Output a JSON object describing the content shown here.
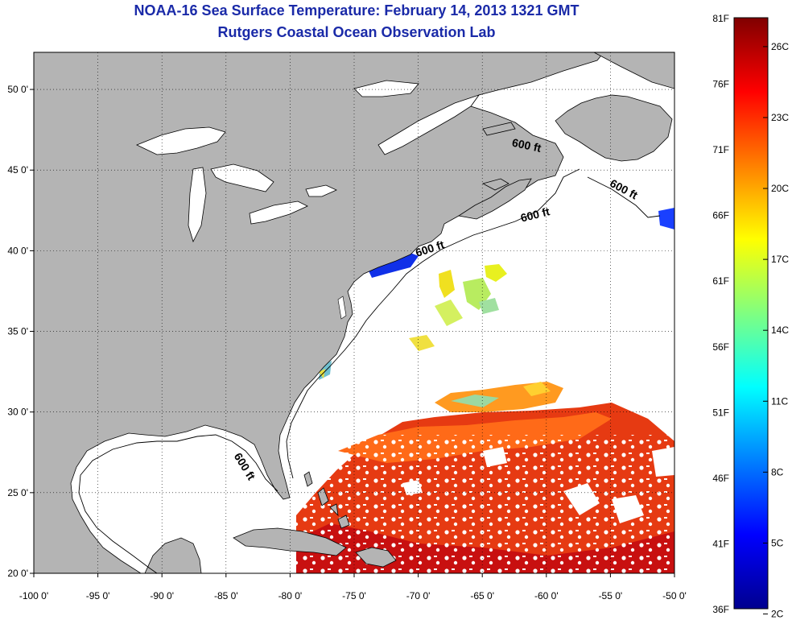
{
  "title": "NOAA-16 Sea Surface Temperature:  February 14, 2013 1321 GMT",
  "subtitle": "Rutgers Coastal Ocean Observation Lab",
  "map": {
    "lon_range": [
      -100,
      -50
    ],
    "lat_range": [
      20,
      52.3
    ],
    "x_ticks": [
      {
        "lon": -100,
        "label": "-100 0'"
      },
      {
        "lon": -95,
        "label": "-95 0'"
      },
      {
        "lon": -90,
        "label": "-90 0'"
      },
      {
        "lon": -85,
        "label": "-85 0'"
      },
      {
        "lon": -80,
        "label": "-80 0'"
      },
      {
        "lon": -75,
        "label": "-75 0'"
      },
      {
        "lon": -70,
        "label": "-70 0'"
      },
      {
        "lon": -65,
        "label": "-65 0'"
      },
      {
        "lon": -60,
        "label": "-60 0'"
      },
      {
        "lon": -55,
        "label": "-55 0'"
      },
      {
        "lon": -50,
        "label": "-50 0'"
      }
    ],
    "y_ticks": [
      {
        "lat": 20,
        "label": "20 0'"
      },
      {
        "lat": 25,
        "label": "25 0'"
      },
      {
        "lat": 30,
        "label": "30 0'"
      },
      {
        "lat": 35,
        "label": "35 0'"
      },
      {
        "lat": 40,
        "label": "40 0'"
      },
      {
        "lat": 45,
        "label": "45 0'"
      },
      {
        "lat": 50,
        "label": "50 0'"
      }
    ],
    "grid": "dotted",
    "land_color": "#b4b4b4",
    "ocean_color": "#ffffff",
    "isobath_labels": [
      {
        "text": "600 ft",
        "lon": -61.6,
        "lat": 46.3,
        "angle": 12
      },
      {
        "text": "600 ft",
        "lon": -54.1,
        "lat": 43.6,
        "angle": 28
      },
      {
        "text": "600 ft",
        "lon": -60.8,
        "lat": 42.0,
        "angle": -14
      },
      {
        "text": "600 ft",
        "lon": -69.0,
        "lat": 39.9,
        "angle": -18
      },
      {
        "text": "600 ft",
        "lon": -83.8,
        "lat": 26.5,
        "angle": 58
      }
    ]
  },
  "colorbar": {
    "min_f": 36,
    "max_f": 81,
    "f_labels": [
      "81F",
      "76F",
      "71F",
      "66F",
      "61F",
      "56F",
      "51F",
      "46F",
      "41F",
      "36F"
    ],
    "c_labels": [
      "26C",
      "23C",
      "20C",
      "17C",
      "14C",
      "11C",
      "8C",
      "5C",
      "2C"
    ],
    "colors": [
      "#00008f",
      "#0000ff",
      "#0080ff",
      "#00ffff",
      "#80ff80",
      "#ffff00",
      "#ff8000",
      "#ff0000",
      "#800000"
    ]
  }
}
